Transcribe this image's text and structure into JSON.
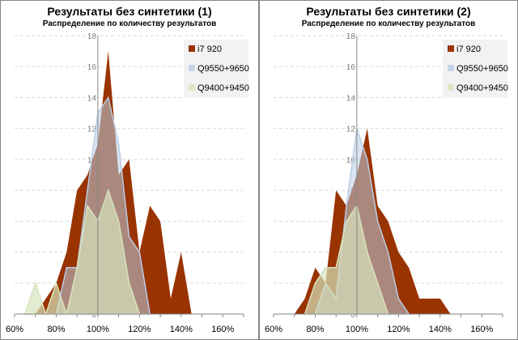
{
  "colors": {
    "i7": "#993300",
    "q9550": "#b9cde5",
    "q9400": "#d7e4bd"
  },
  "chart_data": [
    {
      "type": "area",
      "title": "Результаты без синтетики (1)",
      "subtitle": "Распределение по количеству результатов",
      "xlim": [
        60,
        170
      ],
      "ylim": [
        0,
        18
      ],
      "x_ticks": [
        "60%",
        "80%",
        "100%",
        "120%",
        "140%",
        "160%"
      ],
      "y_ticks": [
        "0",
        "2",
        "4",
        "6",
        "8",
        "10",
        "12",
        "14",
        "16",
        "18"
      ],
      "legend_position": "top-right",
      "series": [
        {
          "name": "i7 920",
          "x": [
            70,
            75,
            80,
            85,
            90,
            95,
            100,
            105,
            110,
            115,
            120,
            125,
            130,
            135,
            140,
            145
          ],
          "values": [
            0,
            1,
            2,
            4,
            8,
            9,
            11,
            17,
            9,
            10,
            4,
            7,
            6,
            1,
            4,
            0
          ]
        },
        {
          "name": "Q9550+9650",
          "x": [
            80,
            85,
            90,
            95,
            100,
            105,
            110,
            115,
            120,
            125
          ],
          "values": [
            0,
            3,
            3,
            8,
            13,
            14,
            11,
            5,
            4,
            0
          ]
        },
        {
          "name": "Q9400+9450",
          "x": [
            65,
            70,
            75,
            80,
            85,
            90,
            95,
            100,
            105,
            110,
            115,
            120
          ],
          "values": [
            0,
            2,
            0,
            2,
            0,
            3,
            7,
            6,
            8,
            6,
            2,
            0
          ]
        }
      ]
    },
    {
      "type": "area",
      "title": "Результаты без синтетики (2)",
      "subtitle": "Распределение по количеству результатов",
      "xlim": [
        60,
        170
      ],
      "ylim": [
        0,
        18
      ],
      "x_ticks": [
        "60%",
        "80%",
        "100%",
        "120%",
        "140%",
        "160%"
      ],
      "y_ticks": [
        "0",
        "2",
        "4",
        "6",
        "8",
        "10",
        "12",
        "14",
        "16",
        "18"
      ],
      "legend_position": "top-right",
      "series": [
        {
          "name": "i7 920",
          "x": [
            70,
            75,
            80,
            85,
            90,
            95,
            100,
            105,
            110,
            115,
            120,
            125,
            130,
            135,
            140,
            145
          ],
          "values": [
            0,
            1,
            3,
            2,
            8,
            7,
            9,
            12,
            7,
            6,
            4,
            3,
            1,
            1,
            1,
            0
          ]
        },
        {
          "name": "Q9550+9650",
          "x": [
            80,
            85,
            90,
            95,
            100,
            105,
            110,
            115,
            120,
            125
          ],
          "values": [
            0,
            2,
            1,
            7,
            12,
            10,
            6,
            4,
            1,
            0
          ]
        },
        {
          "name": "Q9400+9450",
          "x": [
            75,
            80,
            85,
            90,
            95,
            100,
            105,
            110,
            115
          ],
          "values": [
            0,
            2,
            3,
            3,
            6,
            7,
            4,
            2,
            0
          ]
        }
      ]
    }
  ]
}
